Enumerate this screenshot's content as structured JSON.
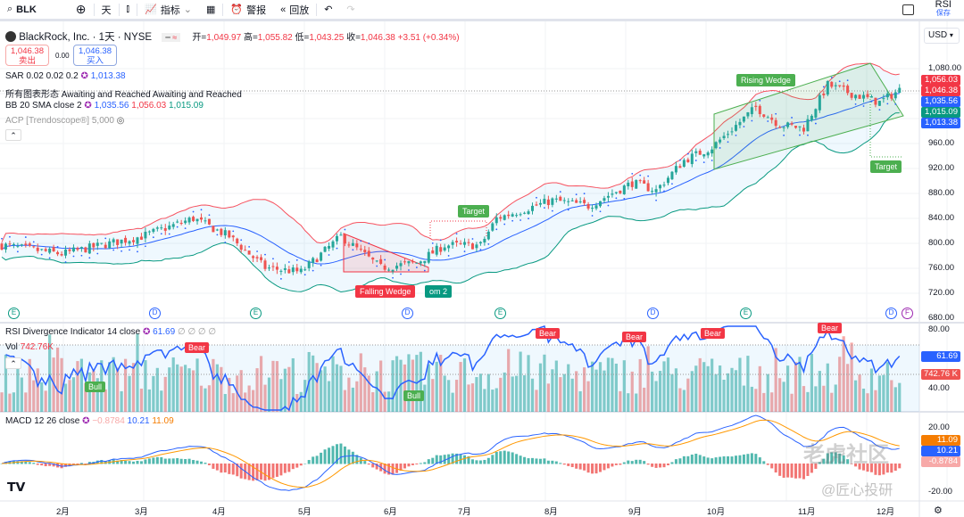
{
  "toolbar": {
    "symbol": "BLK",
    "interval": "天",
    "indicators": "指标",
    "alerts": "警报",
    "replay": "回放",
    "rsi_top": "RSI",
    "save": "保存"
  },
  "header": {
    "title": "BlackRock, Inc. · 1天 · NYSE",
    "open_label": "开=",
    "open": "1,049.97",
    "high_label": "高=",
    "high": "1,055.82",
    "low_label": "低=",
    "low": "1,043.25",
    "close_label": "收=",
    "close": "1,046.38",
    "change": "+3.51 (+0.34%)"
  },
  "trade": {
    "sell_price": "1,046.38",
    "sell_label": "卖出",
    "spread": "0.00",
    "buy_price": "1,046.38",
    "buy_label": "买入"
  },
  "indicators": {
    "sar": {
      "name": "SAR 0.02 0.02 0.2",
      "value": "1,013.38"
    },
    "patterns": {
      "name": "所有图表形态",
      "desc": "Awaiting and Reached Awaiting and Reached"
    },
    "bb": {
      "name": "BB 20 SMA close 2",
      "basis": "1,035.56",
      "upper": "1,056.03",
      "lower": "1,015.09"
    },
    "acp": {
      "name": "ACP [Trendoscope®] 5,000"
    },
    "rsi": {
      "name": "RSI Divergence Indicator 14 close",
      "value": "61.69",
      "extra": "∅ ∅ ∅ ∅"
    },
    "vol": {
      "name": "Vol",
      "value": "742.76K"
    },
    "macd": {
      "name": "MACD 12 26 close",
      "hist": "−0.8784",
      "macd": "10.21",
      "signal": "11.09"
    }
  },
  "currency": "USD",
  "price_axis": [
    "1,080.00",
    "960.00",
    "920.00",
    "880.00",
    "840.00",
    "800.00",
    "760.00",
    "720.00",
    "680.00"
  ],
  "price_badges": [
    {
      "v": "1,056.03",
      "c": "#f23645"
    },
    {
      "v": "1,046.38",
      "c": "#f23645"
    },
    {
      "v": "1,035.56",
      "c": "#2962ff"
    },
    {
      "v": "1,015.09",
      "c": "#089981"
    },
    {
      "v": "1,013.38",
      "c": "#2962ff"
    }
  ],
  "rsi_axis": [
    "80.00",
    "40.00"
  ],
  "rsi_badges": [
    {
      "v": "61.69",
      "c": "#2962ff"
    },
    {
      "v": "742.76 K",
      "c": "#ef5350"
    }
  ],
  "macd_axis": [
    "20.00",
    "-20.00"
  ],
  "macd_badges": [
    {
      "v": "11.09",
      "c": "#f57c00"
    },
    {
      "v": "10.21",
      "c": "#2962ff"
    },
    {
      "v": "-0.8784",
      "c": "#f7a9a8"
    }
  ],
  "months": [
    "2月",
    "3月",
    "4月",
    "5月",
    "6月",
    "7月",
    "8月",
    "9月",
    "10月",
    "11月",
    "12月"
  ],
  "patterns": [
    {
      "label": "Rising Wedge",
      "c": "#4caf50"
    },
    {
      "label": "Target",
      "c": "#4caf50"
    },
    {
      "label": "Falling Wedge",
      "c": "#f23645"
    },
    {
      "label": "om 2",
      "c": "#089981"
    },
    {
      "label": "Target",
      "c": "#4caf50"
    }
  ],
  "divergences": [
    "Bear",
    "Bear",
    "Bear",
    "Bear",
    "Bear",
    "Bull",
    "Bull"
  ],
  "events": [
    "E",
    "D",
    "E",
    "D",
    "E",
    "D",
    "E",
    "D",
    "F"
  ],
  "watermark": {
    "a": "老虎社区",
    "b": "@匠心投研"
  },
  "chart_data": {
    "type": "candlestick",
    "title": "BLK 1D",
    "ylim": [
      680,
      1100
    ],
    "close_path": [
      [
        0,
        797
      ],
      [
        15,
        783
      ],
      [
        35,
        811
      ],
      [
        48,
        840
      ],
      [
        57,
        811
      ],
      [
        66,
        761
      ],
      [
        75,
        754
      ],
      [
        85,
        811
      ],
      [
        95,
        761
      ],
      [
        104,
        769
      ],
      [
        111,
        797
      ],
      [
        120,
        797
      ],
      [
        124,
        840
      ],
      [
        138,
        869
      ],
      [
        147,
        860
      ],
      [
        158,
        897
      ],
      [
        164,
        885
      ],
      [
        171,
        933
      ],
      [
        178,
        954
      ],
      [
        189,
        1018
      ],
      [
        195,
        990
      ],
      [
        201,
        985
      ],
      [
        207,
        1054
      ],
      [
        213,
        1040
      ],
      [
        220,
        1026
      ],
      [
        225,
        1046
      ]
    ],
    "rsi_ylim": [
      25,
      85
    ],
    "macd_ylim": [
      -22,
      30
    ]
  }
}
